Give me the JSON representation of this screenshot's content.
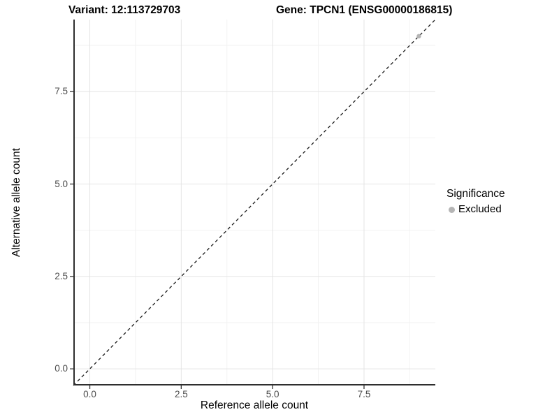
{
  "figure": {
    "title_variant": "Variant: 12:113729703",
    "title_gene": "Gene: TPCN1 (ENSG00000186815)"
  },
  "chart_data": {
    "type": "scatter",
    "title": "Variant: 12:113729703        Gene: TPCN1 (ENSG00000186815)",
    "xlabel": "Reference allele count",
    "ylabel": "Alternative allele count",
    "xlim": [
      -0.45,
      9.45
    ],
    "ylim": [
      -0.45,
      9.45
    ],
    "x_ticks": {
      "values": [
        0,
        2.5,
        5,
        7.5
      ],
      "labels": [
        "0.0",
        "2.5",
        "5.0",
        "7.5"
      ]
    },
    "y_ticks": {
      "values": [
        0,
        2.5,
        5,
        7.5
      ],
      "labels": [
        "0.0",
        "2.5",
        "5.0",
        "7.5"
      ]
    },
    "x_minor_gridlines": [
      1.25,
      3.75,
      6.25,
      8.75
    ],
    "y_minor_gridlines": [
      1.25,
      3.75,
      6.25,
      8.75
    ],
    "grid": "on",
    "reference_line": {
      "kind": "identity y=x",
      "style": "dashed",
      "from": [
        -0.45,
        -0.45
      ],
      "to": [
        9.45,
        9.45
      ]
    },
    "series": [
      {
        "name": "Excluded",
        "marker": "circle",
        "color": "#b5b5b5",
        "points": [
          {
            "x": 9,
            "y": 9
          }
        ]
      }
    ],
    "legend": {
      "title": "Significance",
      "position": "right",
      "entries": [
        {
          "label": "Excluded",
          "color": "#b5b5b5"
        }
      ]
    }
  },
  "legend": {
    "title": "Significance",
    "entry_excluded": "Excluded"
  },
  "colors": {
    "background": "#ffffff",
    "grid_major": "#e4e4e4",
    "grid_minor": "#f2f2f2",
    "axis_line": "#2e2e2e",
    "tick_mark": "#333333",
    "tick_label": "#4d4d4d",
    "dashed_line": "#1a1a1a",
    "point_excluded": "#b5b5b5",
    "text": "#000000"
  }
}
